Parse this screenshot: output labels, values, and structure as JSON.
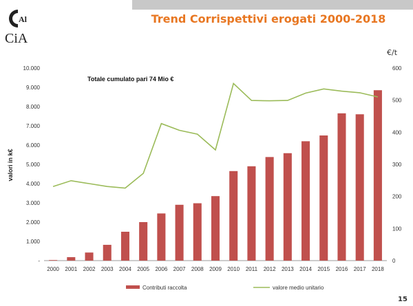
{
  "page": {
    "number": "15"
  },
  "colors": {
    "title": "#e87722",
    "bar": "#c0504d",
    "line": "#9bbb59",
    "axis": "#999999"
  },
  "chart_data": {
    "type": "bar",
    "title": "Trend Corrispettivi erogati 2000-2018",
    "annotation": "Totale cumulato pari 74 Mio €",
    "ylabel": "valori in k€",
    "y2label": "€/t",
    "ylim": [
      0,
      10000
    ],
    "y2lim": [
      0,
      600
    ],
    "yticks": [
      "-",
      "1.000",
      "2.000",
      "3.000",
      "4.000",
      "5.000",
      "6.000",
      "7.000",
      "8.000",
      "9.000",
      "10.000"
    ],
    "y2ticks": [
      "0",
      "100",
      "200",
      "300",
      "400",
      "500",
      "600"
    ],
    "categories": [
      "2000",
      "2001",
      "2002",
      "2003",
      "2004",
      "2005",
      "2006",
      "2007",
      "2008",
      "2009",
      "2010",
      "2011",
      "2012",
      "2013",
      "2014",
      "2015",
      "2016",
      "2017",
      "2018"
    ],
    "legend_position": "bottom",
    "series": [
      {
        "name": "Contributi raccolta",
        "type": "bar",
        "axis": "left",
        "values": [
          30,
          180,
          420,
          820,
          1500,
          2000,
          2450,
          2900,
          2980,
          3350,
          4650,
          4900,
          5380,
          5580,
          6200,
          6500,
          7650,
          7600,
          8850
        ]
      },
      {
        "name": "valore medio unitario",
        "type": "line",
        "axis": "right",
        "values": [
          231,
          249,
          240,
          231,
          226,
          272,
          427,
          406,
          394,
          345,
          552,
          499,
          498,
          499,
          522,
          535,
          528,
          523,
          510
        ]
      }
    ]
  }
}
